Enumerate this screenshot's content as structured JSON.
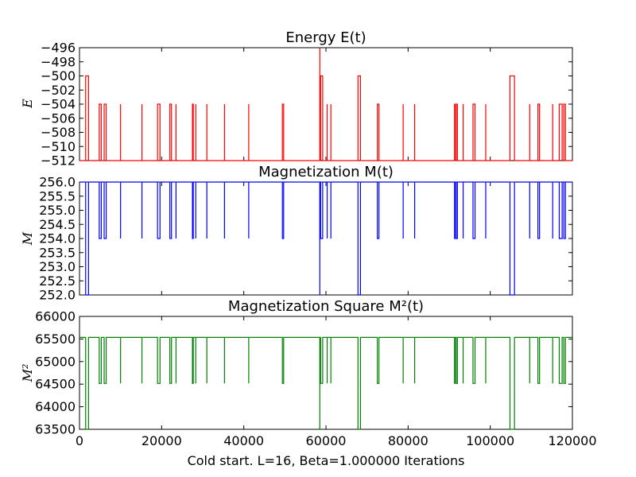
{
  "chart_data": [
    {
      "type": "line",
      "title": "Energy E(t)",
      "ylabel": "E",
      "xlabel": "",
      "xlim": [
        0,
        120000
      ],
      "ylim": [
        -512,
        -496
      ],
      "yticks": [
        -496,
        -498,
        -500,
        -502,
        -504,
        -506,
        -508,
        -510,
        -512
      ],
      "ytick_labels": [
        "−496",
        "−498",
        "−500",
        "−502",
        "−504",
        "−506",
        "−508",
        "−510",
        "−512"
      ],
      "xtick_labels_shown": false,
      "grid": false,
      "series": [
        {
          "color": "#ff0000",
          "baseline": -512,
          "spikes": [
            [
              1500,
              2200,
              -500
            ],
            [
              4800,
              5300,
              -504
            ],
            [
              6000,
              6500,
              -504
            ],
            [
              10000,
              10000,
              -504
            ],
            [
              15200,
              15200,
              -504
            ],
            [
              19000,
              19600,
              -504
            ],
            [
              22000,
              22400,
              -504
            ],
            [
              23500,
              23500,
              -504
            ],
            [
              27500,
              27700,
              -504
            ],
            [
              28300,
              28300,
              -504
            ],
            [
              31000,
              31000,
              -504
            ],
            [
              35300,
              35300,
              -504
            ],
            [
              41200,
              41200,
              -504
            ],
            [
              49400,
              49700,
              -504
            ],
            [
              58500,
              58500,
              -496
            ],
            [
              58700,
              59200,
              -500
            ],
            [
              60300,
              60300,
              -504
            ],
            [
              61200,
              61200,
              -504
            ],
            [
              67800,
              68400,
              -500
            ],
            [
              72500,
              72900,
              -504
            ],
            [
              78800,
              78800,
              -504
            ],
            [
              81600,
              81600,
              -504
            ],
            [
              91300,
              91400,
              -504
            ],
            [
              91700,
              92000,
              -504
            ],
            [
              93400,
              93400,
              -504
            ],
            [
              95800,
              96300,
              -504
            ],
            [
              98900,
              98900,
              -504
            ],
            [
              104800,
              105900,
              -500
            ],
            [
              109600,
              109600,
              -504
            ],
            [
              111600,
              112000,
              -504
            ],
            [
              115200,
              115200,
              -504
            ],
            [
              116800,
              117500,
              -504
            ],
            [
              117900,
              118300,
              -504
            ]
          ]
        }
      ]
    },
    {
      "type": "line",
      "title": "Magnetization M(t)",
      "ylabel": "M",
      "xlabel": "",
      "xlim": [
        0,
        120000
      ],
      "ylim": [
        252.0,
        256.0
      ],
      "yticks": [
        256.0,
        255.5,
        255.0,
        254.5,
        254.0,
        253.5,
        253.0,
        252.5,
        252.0
      ],
      "ytick_labels": [
        "256.0",
        "255.5",
        "255.0",
        "254.5",
        "254.0",
        "253.5",
        "253.0",
        "252.5",
        "252.0"
      ],
      "xtick_labels_shown": false,
      "grid": false,
      "series": [
        {
          "color": "#0000ff",
          "baseline": 256.0,
          "spikes": [
            [
              1500,
              2200,
              252.0
            ],
            [
              4800,
              5300,
              254.0
            ],
            [
              6000,
              6500,
              254.0
            ],
            [
              10000,
              10000,
              254.0
            ],
            [
              15200,
              15200,
              254.0
            ],
            [
              19000,
              19600,
              254.0
            ],
            [
              22000,
              22400,
              254.0
            ],
            [
              23500,
              23500,
              254.0
            ],
            [
              27500,
              27700,
              254.0
            ],
            [
              28300,
              28300,
              254.0
            ],
            [
              31000,
              31000,
              254.0
            ],
            [
              35300,
              35300,
              254.0
            ],
            [
              41200,
              41200,
              254.0
            ],
            [
              49400,
              49700,
              254.0
            ],
            [
              58500,
              58500,
              252.0
            ],
            [
              58700,
              59200,
              254.0
            ],
            [
              60300,
              60300,
              254.0
            ],
            [
              61200,
              61200,
              254.0
            ],
            [
              67800,
              68400,
              252.0
            ],
            [
              72500,
              72900,
              254.0
            ],
            [
              78800,
              78800,
              254.0
            ],
            [
              81600,
              81600,
              254.0
            ],
            [
              91300,
              91400,
              254.0
            ],
            [
              91700,
              92000,
              254.0
            ],
            [
              93400,
              93400,
              254.0
            ],
            [
              95800,
              96300,
              254.0
            ],
            [
              98900,
              98900,
              254.0
            ],
            [
              104800,
              105900,
              252.0
            ],
            [
              109600,
              109600,
              254.0
            ],
            [
              111600,
              112000,
              254.0
            ],
            [
              115200,
              115200,
              254.0
            ],
            [
              116800,
              117500,
              254.0
            ],
            [
              117900,
              118300,
              254.0
            ]
          ]
        }
      ]
    },
    {
      "type": "line",
      "title": "Magnetization Square M²(t)",
      "ylabel": "M²",
      "xlabel": "Cold start. L=16, Beta=1.000000 Iterations",
      "xlim": [
        0,
        120000
      ],
      "ylim": [
        63500,
        66000
      ],
      "xticks": [
        0,
        20000,
        40000,
        60000,
        80000,
        100000,
        120000
      ],
      "xtick_labels": [
        "0",
        "20000",
        "40000",
        "60000",
        "80000",
        "100000",
        "120000"
      ],
      "yticks": [
        66000,
        65500,
        65000,
        64500,
        64000,
        63500
      ],
      "ytick_labels": [
        "66000",
        "65500",
        "65000",
        "64500",
        "64000",
        "63500"
      ],
      "grid": false,
      "series": [
        {
          "color": "#008000",
          "baseline": 65536,
          "spikes": [
            [
              1500,
              2200,
              63500
            ],
            [
              4800,
              5300,
              64516
            ],
            [
              6000,
              6500,
              64516
            ],
            [
              10000,
              10000,
              64516
            ],
            [
              15200,
              15200,
              64516
            ],
            [
              19000,
              19600,
              64516
            ],
            [
              22000,
              22400,
              64516
            ],
            [
              23500,
              23500,
              64516
            ],
            [
              27500,
              27700,
              64516
            ],
            [
              28300,
              28300,
              64516
            ],
            [
              31000,
              31000,
              64516
            ],
            [
              35300,
              35300,
              64516
            ],
            [
              41200,
              41200,
              64516
            ],
            [
              49400,
              49700,
              64516
            ],
            [
              58500,
              58500,
              63500
            ],
            [
              58700,
              59200,
              64516
            ],
            [
              60300,
              60300,
              64516
            ],
            [
              61200,
              61200,
              64516
            ],
            [
              67800,
              68400,
              63500
            ],
            [
              72500,
              72900,
              64516
            ],
            [
              78800,
              78800,
              64516
            ],
            [
              81600,
              81600,
              64516
            ],
            [
              91300,
              91400,
              64516
            ],
            [
              91700,
              92000,
              64516
            ],
            [
              93400,
              93400,
              64516
            ],
            [
              95800,
              96300,
              64516
            ],
            [
              98900,
              98900,
              64516
            ],
            [
              104800,
              105900,
              63500
            ],
            [
              109600,
              109600,
              64516
            ],
            [
              111600,
              112000,
              64516
            ],
            [
              115200,
              115200,
              64516
            ],
            [
              116800,
              117500,
              64516
            ],
            [
              117900,
              118300,
              64516
            ]
          ]
        }
      ]
    }
  ]
}
